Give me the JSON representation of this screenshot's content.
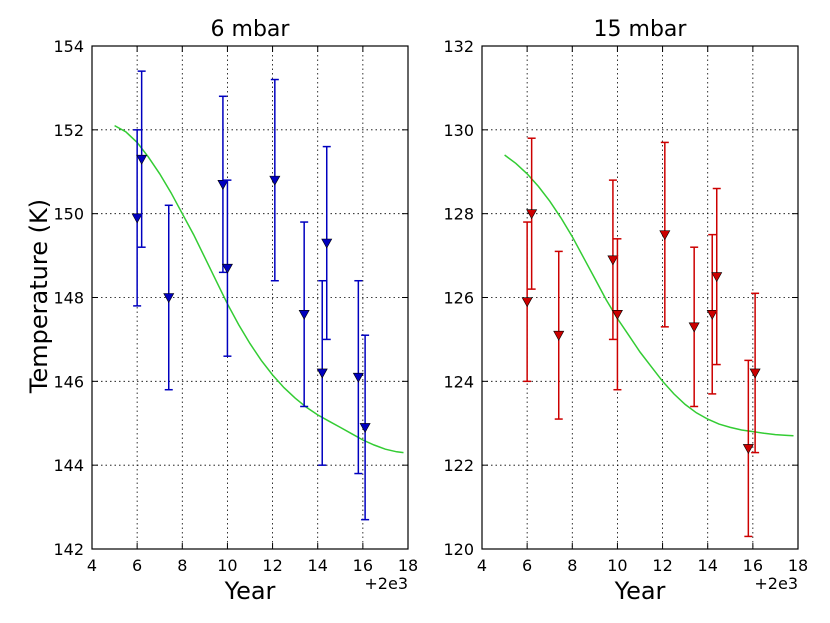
{
  "figure": {
    "ylabel": "Temperature (K)"
  },
  "chart_data": [
    {
      "type": "scatter",
      "title": "6 mbar",
      "xlabel": "Year",
      "ylabel": "Temperature (K)",
      "x_offset_label": "+2e3",
      "xlim": [
        4,
        18
      ],
      "ylim": [
        142,
        154
      ],
      "xticks": [
        4,
        6,
        8,
        10,
        12,
        14,
        16,
        18
      ],
      "yticks": [
        142,
        144,
        146,
        148,
        150,
        152,
        154
      ],
      "grid": true,
      "marker": "triangle-down",
      "color": "#0000bf",
      "points": [
        {
          "x": 6.0,
          "y": 149.9,
          "lo": 147.8,
          "hi": 152.0
        },
        {
          "x": 6.2,
          "y": 151.3,
          "lo": 149.2,
          "hi": 153.4
        },
        {
          "x": 7.4,
          "y": 148.0,
          "lo": 145.8,
          "hi": 150.2
        },
        {
          "x": 9.8,
          "y": 150.7,
          "lo": 148.6,
          "hi": 152.8
        },
        {
          "x": 10.0,
          "y": 148.7,
          "lo": 146.6,
          "hi": 150.8
        },
        {
          "x": 12.1,
          "y": 150.8,
          "lo": 148.4,
          "hi": 153.2
        },
        {
          "x": 13.4,
          "y": 147.6,
          "lo": 145.4,
          "hi": 149.8
        },
        {
          "x": 14.2,
          "y": 146.2,
          "lo": 144.0,
          "hi": 148.4
        },
        {
          "x": 14.4,
          "y": 149.3,
          "lo": 147.0,
          "hi": 151.6
        },
        {
          "x": 15.8,
          "y": 146.1,
          "lo": 143.8,
          "hi": 148.4
        },
        {
          "x": 16.1,
          "y": 144.9,
          "lo": 142.7,
          "hi": 147.1
        }
      ],
      "fit": {
        "color": "#33cc33",
        "x": [
          5.0,
          5.5,
          6.0,
          6.5,
          7.0,
          7.5,
          8.0,
          8.5,
          9.0,
          9.5,
          10.0,
          10.5,
          11.0,
          11.5,
          12.0,
          12.5,
          13.0,
          13.5,
          14.0,
          14.5,
          15.0,
          15.5,
          16.0,
          16.5,
          17.0,
          17.5,
          17.8
        ],
        "y": [
          152.1,
          151.95,
          151.7,
          151.35,
          150.95,
          150.5,
          150.0,
          149.5,
          148.95,
          148.4,
          147.85,
          147.35,
          146.9,
          146.5,
          146.15,
          145.85,
          145.6,
          145.38,
          145.2,
          145.05,
          144.9,
          144.75,
          144.6,
          144.48,
          144.38,
          144.32,
          144.3
        ]
      }
    },
    {
      "type": "scatter",
      "title": "15 mbar",
      "xlabel": "Year",
      "ylabel": "",
      "x_offset_label": "+2e3",
      "xlim": [
        4,
        18
      ],
      "ylim": [
        120,
        132
      ],
      "xticks": [
        4,
        6,
        8,
        10,
        12,
        14,
        16,
        18
      ],
      "yticks": [
        120,
        122,
        124,
        126,
        128,
        130,
        132
      ],
      "grid": true,
      "marker": "triangle-down",
      "color": "#cc0000",
      "points": [
        {
          "x": 6.0,
          "y": 125.9,
          "lo": 124.0,
          "hi": 127.8
        },
        {
          "x": 6.2,
          "y": 128.0,
          "lo": 126.2,
          "hi": 129.8
        },
        {
          "x": 7.4,
          "y": 125.1,
          "lo": 123.1,
          "hi": 127.1
        },
        {
          "x": 9.8,
          "y": 126.9,
          "lo": 125.0,
          "hi": 128.8
        },
        {
          "x": 10.0,
          "y": 125.6,
          "lo": 123.8,
          "hi": 127.4
        },
        {
          "x": 12.1,
          "y": 127.5,
          "lo": 125.3,
          "hi": 129.7
        },
        {
          "x": 13.4,
          "y": 125.3,
          "lo": 123.4,
          "hi": 127.2
        },
        {
          "x": 14.2,
          "y": 125.6,
          "lo": 123.7,
          "hi": 127.5
        },
        {
          "x": 14.4,
          "y": 126.5,
          "lo": 124.4,
          "hi": 128.6
        },
        {
          "x": 15.8,
          "y": 122.4,
          "lo": 120.3,
          "hi": 124.5
        },
        {
          "x": 16.1,
          "y": 124.2,
          "lo": 122.3,
          "hi": 126.1
        }
      ],
      "fit": {
        "color": "#33cc33",
        "x": [
          5.0,
          5.5,
          6.0,
          6.5,
          7.0,
          7.5,
          8.0,
          8.5,
          9.0,
          9.5,
          10.0,
          10.5,
          11.0,
          11.5,
          12.0,
          12.5,
          13.0,
          13.5,
          14.0,
          14.5,
          15.0,
          15.5,
          16.0,
          16.5,
          17.0,
          17.5,
          17.8
        ],
        "y": [
          129.4,
          129.2,
          128.95,
          128.65,
          128.3,
          127.9,
          127.45,
          126.95,
          126.45,
          125.95,
          125.5,
          125.1,
          124.7,
          124.35,
          124.0,
          123.7,
          123.45,
          123.25,
          123.1,
          122.98,
          122.9,
          122.84,
          122.8,
          122.76,
          122.73,
          122.71,
          122.7
        ]
      }
    }
  ]
}
